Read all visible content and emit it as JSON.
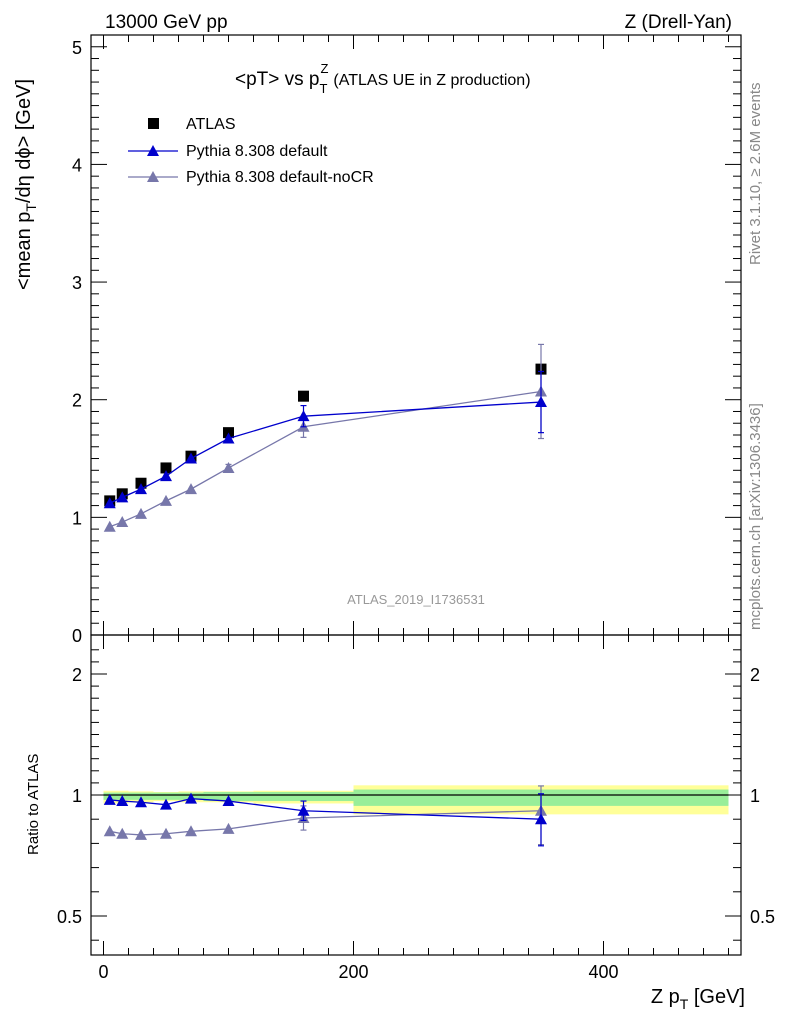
{
  "header": {
    "left": "13000 GeV pp",
    "right": "Z (Drell-Yan)"
  },
  "plot_title": {
    "main": "<pT> vs p",
    "sup": "Z",
    "sub": "T",
    "rest": "(ATLAS UE in Z production)"
  },
  "side_text": {
    "rivet": "Rivet 3.1.10, ≥ 2.6M events",
    "mcplots": "mcplots.cern.ch [arXiv:1306.3436]"
  },
  "watermark": "ATLAS_2019_I1736531",
  "axes": {
    "ylabel_main": "<mean p",
    "ylabel_sub": "T",
    "ylabel_rest": "/dη dϕ> [GeV]",
    "ylabel_ratio": "Ratio to ATLAS",
    "xlabel_main": "Z p",
    "xlabel_sub": "T",
    "xlabel_rest": " [GeV]"
  },
  "legend": [
    {
      "label": "ATLAS",
      "marker": "square",
      "color": "#000000"
    },
    {
      "label": "Pythia 8.308 default",
      "marker": "triangle",
      "color": "#0000cc"
    },
    {
      "label": "Pythia 8.308 default-noCR",
      "marker": "triangle",
      "color": "#7777aa"
    }
  ],
  "chart_data": {
    "type": "scatter",
    "xlim": [
      -10,
      510
    ],
    "main_ylim": [
      0,
      5.1
    ],
    "ratio_ylim": [
      0.35,
      2.3
    ],
    "xticks": [
      0,
      200,
      400
    ],
    "main_yticks": [
      0,
      1,
      2,
      3,
      4,
      5
    ],
    "ratio_yticks": [
      0.5,
      1,
      2
    ],
    "x_edges": [
      0,
      10,
      20,
      40,
      60,
      80,
      120,
      200,
      500
    ],
    "x": [
      5,
      15,
      30,
      50,
      70,
      100,
      160,
      350
    ],
    "series": [
      {
        "name": "ATLAS",
        "color": "#000000",
        "values": [
          1.14,
          1.2,
          1.29,
          1.42,
          1.52,
          1.72,
          2.03,
          2.26
        ]
      },
      {
        "name": "Pythia 8.308 default",
        "color": "#0000cc",
        "values": [
          1.12,
          1.17,
          1.24,
          1.35,
          1.5,
          1.67,
          1.86,
          1.98
        ],
        "errors": [
          0.01,
          0.01,
          0.01,
          0.01,
          0.02,
          0.02,
          0.09,
          0.26
        ],
        "ratio": [
          0.98,
          0.975,
          0.97,
          0.96,
          0.985,
          0.975,
          0.935,
          0.9
        ],
        "ratio_errors": [
          0.01,
          0.01,
          0.01,
          0.01,
          0.01,
          0.015,
          0.04,
          0.11
        ]
      },
      {
        "name": "Pythia 8.308 default-noCR",
        "color": "#7777aa",
        "values": [
          0.92,
          0.96,
          1.03,
          1.14,
          1.24,
          1.42,
          1.77,
          2.07
        ],
        "errors": [
          0.01,
          0.01,
          0.01,
          0.02,
          0.02,
          0.03,
          0.09,
          0.4
        ],
        "ratio": [
          0.85,
          0.84,
          0.835,
          0.84,
          0.85,
          0.86,
          0.905,
          0.935
        ],
        "ratio_errors": [
          0.01,
          0.01,
          0.01,
          0.01,
          0.01,
          0.015,
          0.05,
          0.14
        ]
      }
    ],
    "ratio_band_inner": [
      0.02,
      0.02,
      0.02,
      0.02,
      0.02,
      0.025,
      0.025,
      0.045
    ],
    "ratio_band_outer": [
      0.035,
      0.035,
      0.03,
      0.025,
      0.03,
      0.03,
      0.035,
      0.08
    ],
    "band_colors": {
      "inner": "#99ee99",
      "outer": "#ffff99"
    }
  }
}
